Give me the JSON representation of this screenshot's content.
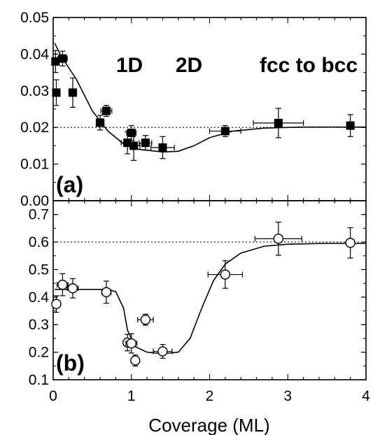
{
  "chart_data": {
    "xlabel": "Coverage (ML)",
    "x_ticks": [
      "0",
      "1",
      "2",
      "3",
      "4"
    ],
    "xlim": [
      0,
      4
    ],
    "panels": [
      {
        "type": "scatter",
        "panel_label": "(a)",
        "ylim": [
          0,
          0.05
        ],
        "y_ticks": [
          "0.00",
          "0.01",
          "0.02",
          "0.03",
          "0.04",
          "0.05"
        ],
        "marker": "filled-square",
        "reference_line": 0.02,
        "annotations": [
          "1D",
          "2D",
          "fcc to bcc"
        ],
        "points": [
          {
            "x": 0.03,
            "y": 0.038,
            "yerr": 0.003,
            "xerr": 0.0
          },
          {
            "x": 0.04,
            "y": 0.0295,
            "yerr": 0.0035,
            "xerr": 0.0
          },
          {
            "x": 0.12,
            "y": 0.0388,
            "yerr": 0.002,
            "xerr": 0.06
          },
          {
            "x": 0.25,
            "y": 0.0295,
            "yerr": 0.004,
            "xerr": 0.05
          },
          {
            "x": 0.6,
            "y": 0.0213,
            "yerr": 0.002,
            "xerr": 0.05
          },
          {
            "x": 0.68,
            "y": 0.0245,
            "yerr": 0.0015,
            "xerr": 0.07
          },
          {
            "x": 0.95,
            "y": 0.0158,
            "yerr": 0.003,
            "xerr": 0.08
          },
          {
            "x": 1.0,
            "y": 0.0185,
            "yerr": 0.002,
            "xerr": 0.06
          },
          {
            "x": 1.03,
            "y": 0.015,
            "yerr": 0.004,
            "xerr": 0.08
          },
          {
            "x": 1.18,
            "y": 0.0158,
            "yerr": 0.002,
            "xerr": 0.08
          },
          {
            "x": 1.4,
            "y": 0.0145,
            "yerr": 0.003,
            "xerr": 0.15
          },
          {
            "x": 2.2,
            "y": 0.019,
            "yerr": 0.0015,
            "xerr": 0.2
          },
          {
            "x": 2.88,
            "y": 0.0212,
            "yerr": 0.004,
            "xerr": 0.32
          },
          {
            "x": 3.8,
            "y": 0.0205,
            "yerr": 0.003,
            "xerr": 0.0
          }
        ],
        "fit_curve": [
          [
            0.02,
            0.043
          ],
          [
            0.1,
            0.0395
          ],
          [
            0.3,
            0.033
          ],
          [
            0.5,
            0.0245
          ],
          [
            0.7,
            0.019
          ],
          [
            0.9,
            0.0155
          ],
          [
            1.1,
            0.014
          ],
          [
            1.4,
            0.0133
          ],
          [
            1.6,
            0.0135
          ],
          [
            1.8,
            0.015
          ],
          [
            2.0,
            0.0172
          ],
          [
            2.3,
            0.019
          ],
          [
            2.7,
            0.0198
          ],
          [
            3.2,
            0.0201
          ],
          [
            3.8,
            0.0201
          ],
          [
            4.0,
            0.0201
          ]
        ]
      },
      {
        "type": "scatter",
        "panel_label": "(b)",
        "ylim": [
          0.1,
          0.75
        ],
        "y_ticks": [
          "0.1",
          "0.2",
          "0.3",
          "0.4",
          "0.5",
          "0.6",
          "0.7"
        ],
        "marker": "open-circle",
        "reference_line": 0.6,
        "points": [
          {
            "x": 0.04,
            "y": 0.375,
            "yerr": 0.03,
            "xerr": 0.03
          },
          {
            "x": 0.12,
            "y": 0.445,
            "yerr": 0.04,
            "xerr": 0.07
          },
          {
            "x": 0.25,
            "y": 0.432,
            "yerr": 0.035,
            "xerr": 0.07
          },
          {
            "x": 0.68,
            "y": 0.418,
            "yerr": 0.04,
            "xerr": 0.06
          },
          {
            "x": 0.95,
            "y": 0.235,
            "yerr": 0.03,
            "xerr": 0.05
          },
          {
            "x": 1.0,
            "y": 0.232,
            "yerr": 0.035,
            "xerr": 0.07
          },
          {
            "x": 1.05,
            "y": 0.17,
            "yerr": 0.02,
            "xerr": 0.05
          },
          {
            "x": 1.18,
            "y": 0.318,
            "yerr": 0.02,
            "xerr": 0.1
          },
          {
            "x": 1.4,
            "y": 0.203,
            "yerr": 0.025,
            "xerr": 0.12
          },
          {
            "x": 2.2,
            "y": 0.482,
            "yerr": 0.05,
            "xerr": 0.22
          },
          {
            "x": 2.88,
            "y": 0.612,
            "yerr": 0.06,
            "xerr": 0.3
          },
          {
            "x": 3.8,
            "y": 0.597,
            "yerr": 0.055,
            "xerr": 0.0
          }
        ],
        "fit_curve": [
          [
            0.02,
            0.428
          ],
          [
            0.7,
            0.428
          ],
          [
            0.8,
            0.42
          ],
          [
            0.9,
            0.36
          ],
          [
            0.95,
            0.28
          ],
          [
            1.05,
            0.22
          ],
          [
            1.2,
            0.2
          ],
          [
            1.4,
            0.195
          ],
          [
            1.6,
            0.2
          ],
          [
            1.75,
            0.25
          ],
          [
            1.9,
            0.36
          ],
          [
            2.05,
            0.46
          ],
          [
            2.2,
            0.52
          ],
          [
            2.4,
            0.56
          ],
          [
            2.7,
            0.585
          ],
          [
            3.0,
            0.592
          ],
          [
            3.5,
            0.595
          ],
          [
            4.0,
            0.595
          ]
        ]
      }
    ]
  }
}
